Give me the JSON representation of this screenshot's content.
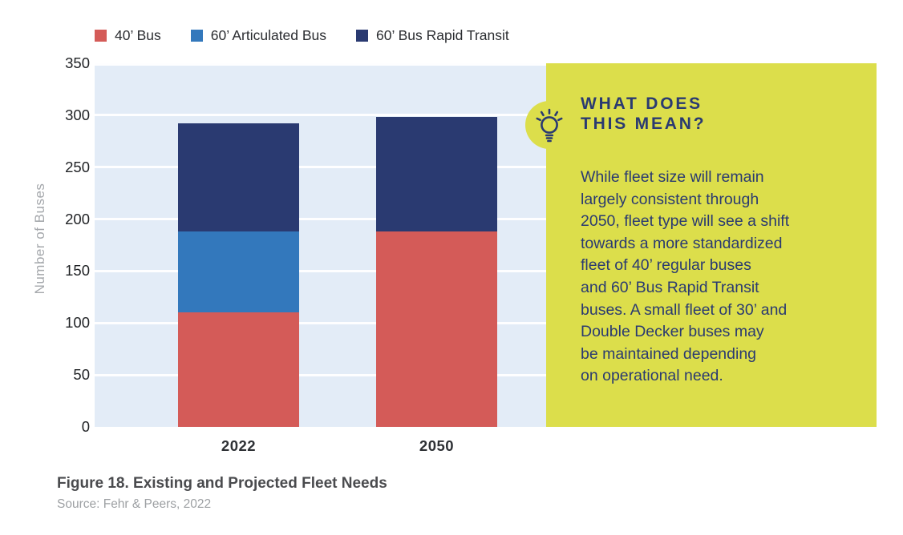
{
  "chart_data": {
    "type": "bar",
    "stacked": true,
    "categories": [
      "2022",
      "2050"
    ],
    "series": [
      {
        "name": "40’ Bus",
        "color": "#d45b58",
        "values": [
          110,
          188
        ]
      },
      {
        "name": "60’ Articulated Bus",
        "color": "#3378bc",
        "values": [
          78,
          0
        ]
      },
      {
        "name": "60’ Bus Rapid Transit",
        "color": "#2a3a71",
        "values": [
          104,
          110
        ]
      }
    ],
    "totals": [
      292,
      298
    ],
    "title": "",
    "xlabel": "",
    "ylabel": "Number of Buses",
    "ylim": [
      0,
      350
    ],
    "yticks": [
      "0",
      "50",
      "100",
      "150",
      "200",
      "250",
      "300",
      "350"
    ],
    "grid": true,
    "gridlines": "horizontal, white, every 50 units",
    "plot_background": "#e3ecf7",
    "legend_position": "top"
  },
  "callout": {
    "heading": "WHAT DOES\nTHIS MEAN?",
    "body": "While fleet size will remain\nlargely consistent through\n2050, fleet type will see a shift\ntowards a more standardized\nfleet of 40’ regular buses\nand 60’ Bus Rapid Transit\nbuses. A small fleet of 30’ and\nDouble Decker buses may\nbe maintained depending\non operational need.",
    "icon": "lightbulb-icon",
    "bg_color": "#dcde4b",
    "text_color": "#2a3a71"
  },
  "figure": {
    "caption_title": "Figure 18. Existing and Projected Fleet Needs",
    "caption_source": "Source: Fehr & Peers, 2022"
  }
}
